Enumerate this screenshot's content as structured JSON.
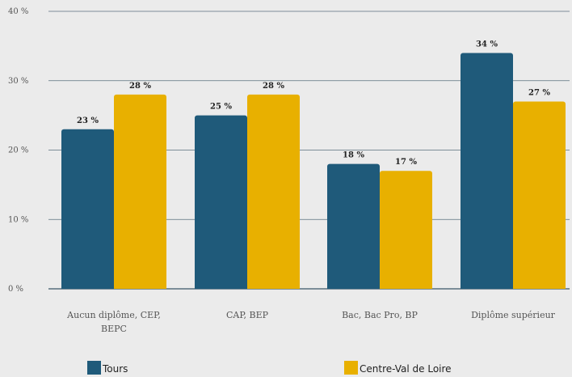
{
  "chart_data": {
    "type": "bar",
    "categories": [
      [
        "Aucun diplôme, CEP,",
        "BEPC"
      ],
      [
        "CAP, BEP"
      ],
      [
        "Bac, Bac Pro, BP"
      ],
      [
        "Diplôme supérieur"
      ]
    ],
    "series": [
      {
        "name": "Tours",
        "color": "#1f5a7a",
        "values": [
          23,
          25,
          18,
          34
        ],
        "labels": [
          "23 %",
          "25 %",
          "18 %",
          "34 %"
        ]
      },
      {
        "name": "Centre-Val de Loire",
        "color": "#e8b000",
        "values": [
          28,
          28,
          17,
          27
        ],
        "labels": [
          "28 %",
          "28 %",
          "17 %",
          "27 %"
        ]
      }
    ],
    "ylim": [
      0,
      40
    ],
    "yticks": [
      0,
      10,
      20,
      30,
      40
    ],
    "ytick_labels": [
      "0 %",
      "10 %",
      "20 %",
      "30 %",
      "40 %"
    ],
    "grid": true,
    "legend_position": "bottom",
    "title": "",
    "xlabel": "",
    "ylabel": ""
  }
}
